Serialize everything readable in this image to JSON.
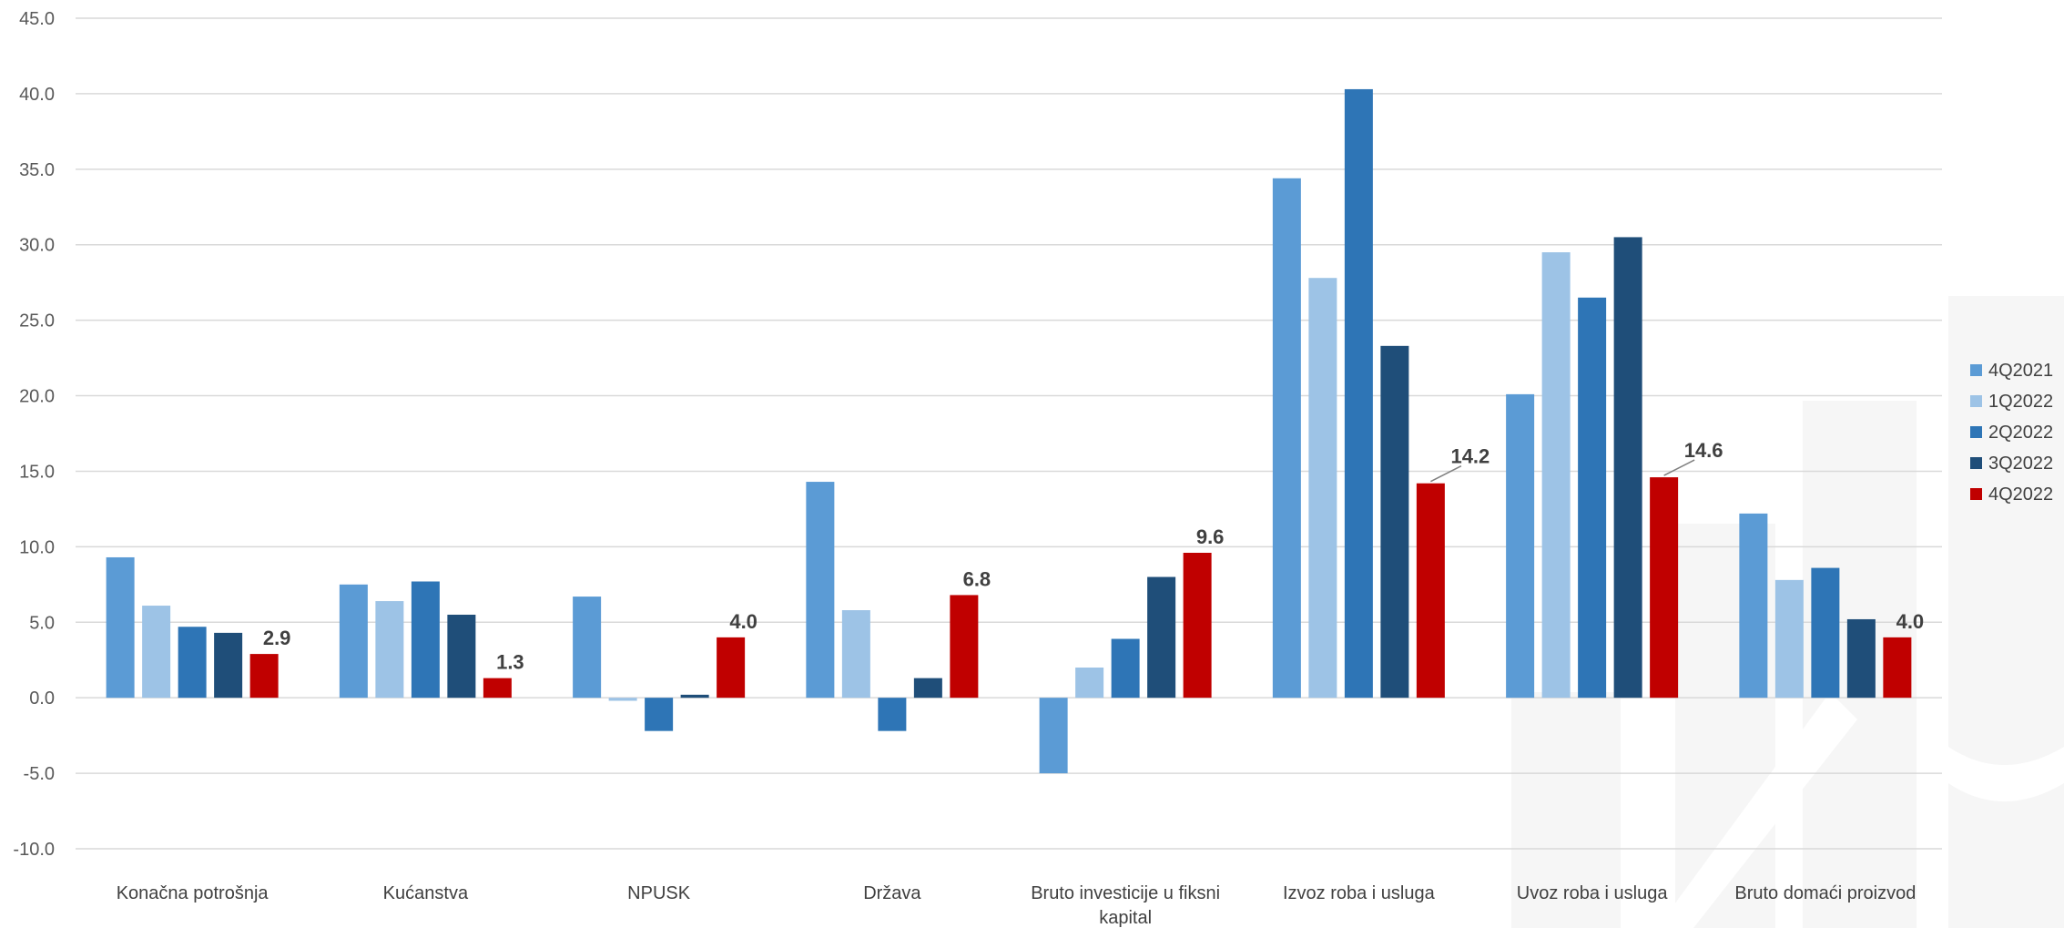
{
  "chart_data": {
    "type": "bar",
    "categories": [
      "Konačna potrošnja",
      "Kućanstva",
      "NPUSK",
      "Država",
      "Bruto investicije u fiksni kapital",
      "Izvoz roba i usluga",
      "Uvoz roba i usluga",
      "Bruto domaći proizvod"
    ],
    "series": [
      {
        "name": "4Q2021",
        "color": "#5B9BD5",
        "values": [
          9.3,
          7.5,
          6.7,
          14.3,
          -5.0,
          34.4,
          20.1,
          12.2
        ]
      },
      {
        "name": "1Q2022",
        "color": "#9DC3E6",
        "values": [
          6.1,
          6.4,
          -0.2,
          5.8,
          2.0,
          27.8,
          29.5,
          7.8
        ]
      },
      {
        "name": "2Q2022",
        "color": "#2E75B6",
        "values": [
          4.7,
          7.7,
          -2.2,
          -2.2,
          3.9,
          40.3,
          26.5,
          8.6
        ]
      },
      {
        "name": "3Q2022",
        "color": "#1F4E79",
        "values": [
          4.3,
          5.5,
          0.2,
          1.3,
          8.0,
          23.3,
          30.5,
          5.2
        ]
      },
      {
        "name": "4Q2022",
        "color": "#C00000",
        "values": [
          2.9,
          1.3,
          4.0,
          6.8,
          9.6,
          14.2,
          14.6,
          4.0
        ]
      }
    ],
    "data_labels": {
      "series": "4Q2022",
      "values": [
        "2.9",
        "1.3",
        "4.0",
        "6.8",
        "9.6",
        "14.2",
        "14.6",
        "4.0"
      ]
    },
    "ylim": [
      -10,
      45
    ],
    "y_ticks": [
      "-10.0",
      "-5.0",
      "0.0",
      "5.0",
      "10.0",
      "15.0",
      "20.0",
      "25.0",
      "30.0",
      "35.0",
      "40.0",
      "45.0"
    ],
    "xlabel": "",
    "ylabel": "",
    "grid": true,
    "legend_position": "right"
  }
}
